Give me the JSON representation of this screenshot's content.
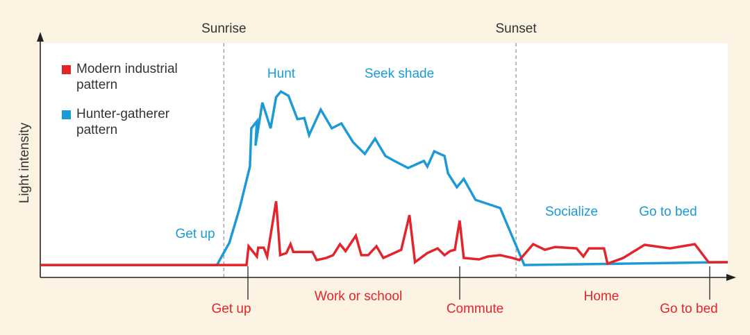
{
  "chart_data": {
    "type": "line",
    "ylabel": "Light intensity",
    "xlim": [
      0,
      100
    ],
    "ylim": [
      0,
      100
    ],
    "legend": "top-left",
    "vlines": [
      {
        "label": "Sunrise",
        "x": 26.7
      },
      {
        "label": "Sunset",
        "x": 69.2
      }
    ],
    "series": [
      {
        "name": "Hunter-gatherer pattern",
        "color": "#1b9ad6",
        "x": [
          0,
          25.7,
          27.5,
          29.0,
          30.5,
          30.7,
          31.5,
          31.3,
          32.3,
          33.5,
          34.3,
          35.0,
          36.1,
          37.4,
          38.4,
          39.1,
          40.8,
          42.4,
          43.8,
          45.5,
          47.2,
          48.7,
          50.2,
          51.5,
          53.5,
          55.8,
          56.3,
          57.3,
          58.8,
          59.3,
          60.6,
          61.6,
          63.3,
          66.9,
          70.4,
          100
        ],
        "values": [
          5.3,
          5.3,
          14.8,
          29.6,
          47.3,
          63.6,
          66.6,
          56.2,
          74.6,
          63.6,
          76.9,
          79.3,
          77.5,
          67.5,
          68.0,
          60.7,
          71.6,
          63.6,
          65.7,
          57.7,
          52.7,
          59.2,
          51.8,
          49.7,
          46.7,
          49.7,
          47.3,
          53.8,
          51.8,
          44.4,
          38.5,
          42.0,
          33.1,
          29.6,
          5.3,
          6.5
        ]
      },
      {
        "name": "Modern industrial pattern",
        "color": "#e3252b",
        "x": [
          0,
          30.0,
          30.3,
          31.5,
          31.7,
          32.5,
          33.0,
          34.3,
          34.9,
          35.8,
          36.4,
          36.8,
          39.6,
          40.2,
          41.6,
          42.6,
          43.6,
          44.4,
          45.9,
          46.7,
          47.7,
          48.9,
          49.9,
          52.5,
          53.7,
          54.5,
          56.3,
          57.8,
          58.8,
          59.6,
          60.3,
          61.0,
          61.6,
          63.8,
          65.1,
          66.9,
          68.7,
          69.7,
          71.7,
          73.4,
          74.9,
          78.0,
          79.0,
          79.8,
          82.0,
          82.5,
          84.8,
          87.9,
          91.6,
          95.2,
          97.2,
          100
        ],
        "values": [
          5.3,
          5.3,
          13.3,
          8.9,
          12.7,
          12.7,
          8.9,
          32.5,
          9.5,
          10.4,
          14.2,
          10.9,
          10.9,
          7.4,
          8.3,
          9.5,
          14.2,
          11.2,
          17.8,
          9.5,
          9.5,
          13.3,
          8.3,
          11.8,
          26.6,
          6.5,
          10.4,
          12.4,
          9.5,
          11.2,
          11.8,
          24.3,
          8.3,
          7.7,
          8.9,
          9.5,
          8.3,
          7.4,
          14.2,
          11.8,
          13.0,
          12.4,
          8.9,
          12.4,
          12.4,
          5.9,
          8.3,
          13.9,
          12.4,
          14.2,
          6.5,
          6.5
        ]
      }
    ],
    "annotations_hunter": [
      "Get up",
      "Hunt",
      "Seek shade",
      "Socialize",
      "Go to bed"
    ],
    "annotations_modern": [
      "Get up",
      "Work or school",
      "Commute",
      "Home",
      "Go to bed"
    ]
  }
}
